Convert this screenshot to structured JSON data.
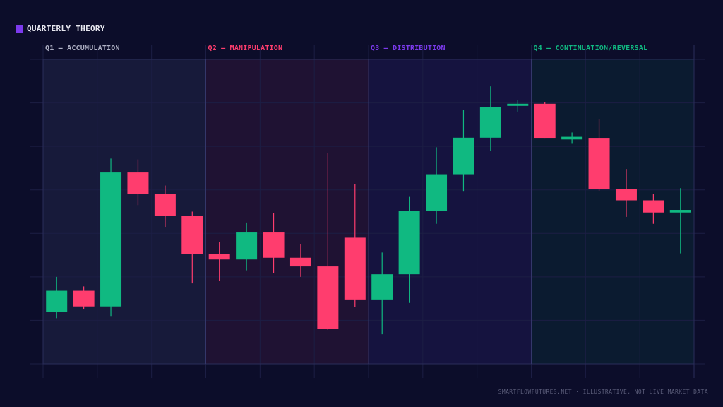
{
  "title": "QUARTERLY THEORY",
  "footer": "SMARTFLOWFUTURES.NET · ILLUSTRATIVE, NOT LIVE MARKET DATA",
  "colors": {
    "background": "#0c0d2a",
    "up": "#10b981",
    "down": "#ff3d6e",
    "title_swatch": "#7c3aed",
    "grid": "#1c1e44"
  },
  "chart_data": {
    "type": "candlestick",
    "grid": true,
    "ylim": [
      0,
      7
    ],
    "quarters": [
      {
        "label": "Q1 — ACCUMULATION",
        "start": 0,
        "end": 6,
        "color": "#aeb0c4",
        "fill": "#171a3a"
      },
      {
        "label": "Q2 — MANIPULATION",
        "start": 6,
        "end": 12,
        "color": "#ff3d6e",
        "fill": "#1f1233"
      },
      {
        "label": "Q3 — DISTRIBUTION",
        "start": 12,
        "end": 18,
        "color": "#7c3aed",
        "fill": "#15133f"
      },
      {
        "label": "Q4 — CONTINUATION/REVERSAL",
        "start": 18,
        "end": 24,
        "color": "#10b981",
        "fill": "#0b1b30"
      }
    ],
    "candles": [
      {
        "o": 1.2,
        "h": 2.0,
        "l": 1.05,
        "c": 1.68
      },
      {
        "o": 1.68,
        "h": 1.78,
        "l": 1.25,
        "c": 1.32
      },
      {
        "o": 1.32,
        "h": 4.72,
        "l": 1.1,
        "c": 4.4
      },
      {
        "o": 4.4,
        "h": 4.7,
        "l": 3.65,
        "c": 3.9
      },
      {
        "o": 3.9,
        "h": 4.1,
        "l": 3.15,
        "c": 3.4
      },
      {
        "o": 3.4,
        "h": 3.5,
        "l": 1.85,
        "c": 2.52
      },
      {
        "o": 2.52,
        "h": 2.8,
        "l": 1.9,
        "c": 2.4
      },
      {
        "o": 2.4,
        "h": 3.25,
        "l": 2.15,
        "c": 3.02
      },
      {
        "o": 3.02,
        "h": 3.46,
        "l": 2.08,
        "c": 2.44
      },
      {
        "o": 2.44,
        "h": 2.76,
        "l": 2.0,
        "c": 2.24
      },
      {
        "o": 2.24,
        "h": 4.85,
        "l": 0.78,
        "c": 0.8
      },
      {
        "o": 2.9,
        "h": 4.14,
        "l": 1.3,
        "c": 1.48
      },
      {
        "o": 1.48,
        "h": 2.56,
        "l": 0.68,
        "c": 2.06
      },
      {
        "o": 2.06,
        "h": 3.84,
        "l": 1.4,
        "c": 3.52
      },
      {
        "o": 3.52,
        "h": 4.98,
        "l": 3.22,
        "c": 4.36
      },
      {
        "o": 4.36,
        "h": 5.84,
        "l": 3.96,
        "c": 5.2
      },
      {
        "o": 5.2,
        "h": 6.38,
        "l": 4.9,
        "c": 5.9
      },
      {
        "o": 5.94,
        "h": 6.06,
        "l": 5.8,
        "c": 5.98
      },
      {
        "o": 5.98,
        "h": 6.02,
        "l": 5.18,
        "c": 5.18
      },
      {
        "o": 5.16,
        "h": 5.32,
        "l": 5.06,
        "c": 5.22
      },
      {
        "o": 5.18,
        "h": 5.62,
        "l": 3.98,
        "c": 4.02
      },
      {
        "o": 4.02,
        "h": 4.48,
        "l": 3.38,
        "c": 3.76
      },
      {
        "o": 3.76,
        "h": 3.9,
        "l": 3.22,
        "c": 3.48
      },
      {
        "o": 3.48,
        "h": 4.04,
        "l": 2.54,
        "c": 3.54
      }
    ]
  }
}
